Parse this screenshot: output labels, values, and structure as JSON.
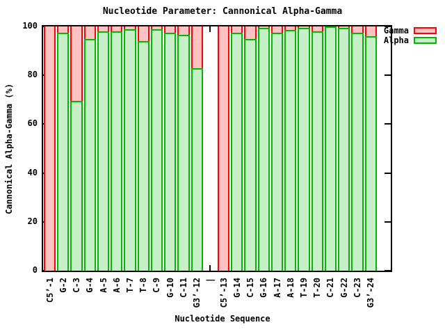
{
  "window": {
    "background": "#ffffff",
    "text_color": "#000000"
  },
  "title": "Nucleotide Parameter: Cannonical Alpha-Gamma",
  "legend": {
    "items": [
      "Gamma",
      "Alpha"
    ]
  },
  "chart_data": {
    "type": "bar",
    "subtype": "overlay-bars-gamma-behind-alpha",
    "title": "Nucleotide Parameter: Cannonical Alpha-Gamma",
    "xlabel": "Nucleotide Sequence",
    "ylabel": "Cannonical Alpha-Gamma (%)",
    "ylim": [
      0,
      100
    ],
    "yticks": [
      0,
      20,
      40,
      60,
      80,
      100
    ],
    "grid": false,
    "legend_position": "outside-top-right",
    "gap_category": "|",
    "categories": [
      "C5’-1",
      "G-2",
      "C-3",
      "G-4",
      "A-5",
      "A-6",
      "T-7",
      "T-8",
      "C-9",
      "G-10",
      "C-11",
      "G3’-12",
      "|",
      "C5’-13",
      "G-14",
      "C-15",
      "G-16",
      "A-17",
      "A-18",
      "T-19",
      "T-20",
      "C-21",
      "G-22",
      "C-23",
      "G3’-24"
    ],
    "series": [
      {
        "name": "Gamma",
        "fill": "#ffc2c2",
        "border": "#ff0000",
        "values": [
          100,
          100,
          100,
          100,
          100,
          100,
          100,
          100,
          100,
          100,
          100,
          100,
          null,
          100,
          100,
          100,
          100,
          100,
          100,
          100,
          100,
          100,
          100,
          100,
          100
        ]
      },
      {
        "name": "Alpha",
        "fill": "#c8f0c8",
        "border": "#00b800",
        "values": [
          0,
          97.5,
          69.5,
          95,
          98,
          98,
          99,
          94,
          99,
          97.5,
          96.5,
          83,
          null,
          0,
          97.5,
          95,
          99.5,
          97.5,
          98.5,
          99.5,
          98,
          100,
          99.5,
          97.5,
          96
        ]
      }
    ]
  }
}
